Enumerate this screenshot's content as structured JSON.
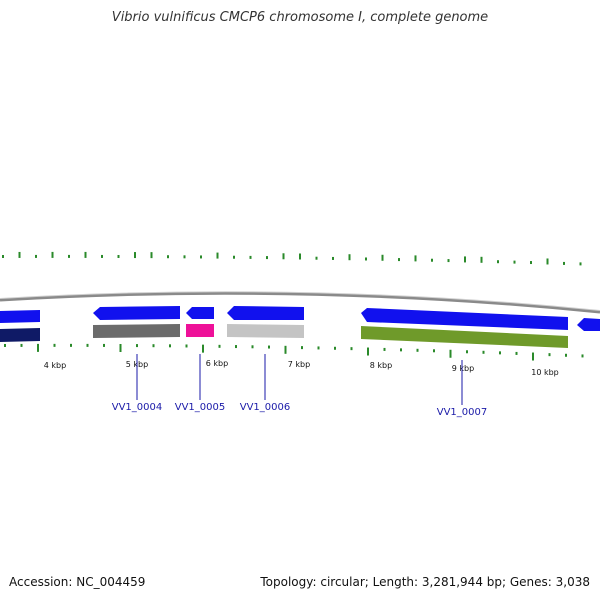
{
  "title": "Vibrio vulnificus CMCP6 chromosome I, complete genome",
  "footer": {
    "accession": "Accession: NC_004459",
    "summary": "Topology: circular; Length: 3,281,944 bp; Genes: 3,038"
  },
  "colors": {
    "forward_cds": "#1111ee",
    "navy": "#0f1a66",
    "dark_gray": "#6b6b6b",
    "magenta": "#ee1199",
    "light_gray": "#c4c4c4",
    "olive": "#6f9a2a",
    "tick_green": "#2a8a2a",
    "backbone": "#8a8a8a",
    "label_blue": "#1a1aa8"
  },
  "chart_data": {
    "type": "genome_map",
    "scale_labels": [
      "4 kbp",
      "5 kbp",
      "6 kbp",
      "7 kbp",
      "8 kbp",
      "9 kbp",
      "10 kbp"
    ],
    "genes": [
      {
        "label": "VV1_0004"
      },
      {
        "label": "VV1_0005"
      },
      {
        "label": "VV1_0006"
      },
      {
        "label": "VV1_0007"
      }
    ]
  }
}
